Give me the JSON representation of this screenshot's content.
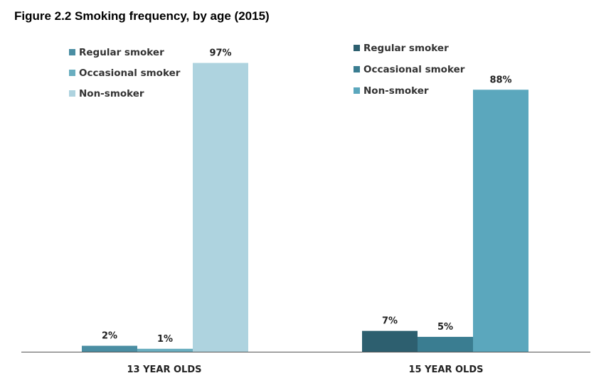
{
  "title": "Figure 2.2 Smoking frequency, by age (2015)",
  "chart_data": [
    {
      "type": "bar",
      "group_label": "13 YEAR OLDS",
      "categories": [
        "Regular smoker",
        "Occasional smoker",
        "Non-smoker"
      ],
      "values": [
        2,
        1,
        97
      ],
      "value_labels": [
        "2%",
        "1%",
        "97%"
      ],
      "colors": [
        "#4a8ea3",
        "#6aaec0",
        "#aed3df"
      ],
      "legend": [
        "Regular smoker",
        "Occasional smoker",
        "Non-smoker"
      ],
      "legend_position": "top-left",
      "ylim": [
        0,
        100
      ],
      "grid": false
    },
    {
      "type": "bar",
      "group_label": "15 YEAR OLDS",
      "categories": [
        "Regular smoker",
        "Occasional smoker",
        "Non-smoker"
      ],
      "values": [
        7,
        5,
        88
      ],
      "value_labels": [
        "7%",
        "5%",
        "88%"
      ],
      "colors": [
        "#2d5f6f",
        "#3a7d91",
        "#5ba7bd"
      ],
      "legend": [
        "Regular smoker",
        "Occasional smoker",
        "Non-smoker"
      ],
      "legend_position": "top-left",
      "ylim": [
        0,
        100
      ],
      "grid": false
    }
  ]
}
